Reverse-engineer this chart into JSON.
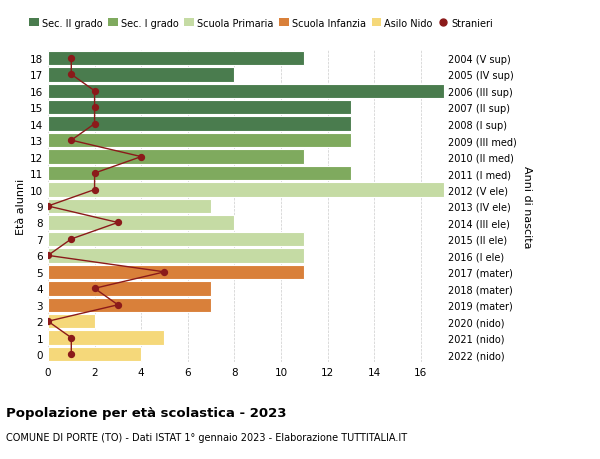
{
  "ages": [
    18,
    17,
    16,
    15,
    14,
    13,
    12,
    11,
    10,
    9,
    8,
    7,
    6,
    5,
    4,
    3,
    2,
    1,
    0
  ],
  "right_labels": [
    "2004 (V sup)",
    "2005 (IV sup)",
    "2006 (III sup)",
    "2007 (II sup)",
    "2008 (I sup)",
    "2009 (III med)",
    "2010 (II med)",
    "2011 (I med)",
    "2012 (V ele)",
    "2013 (IV ele)",
    "2014 (III ele)",
    "2015 (II ele)",
    "2016 (I ele)",
    "2017 (mater)",
    "2018 (mater)",
    "2019 (mater)",
    "2020 (nido)",
    "2021 (nido)",
    "2022 (nido)"
  ],
  "bar_values": [
    11,
    8,
    17,
    13,
    13,
    13,
    11,
    13,
    17,
    7,
    8,
    11,
    11,
    11,
    7,
    7,
    2,
    5,
    4
  ],
  "bar_colors": [
    "#4a7c4e",
    "#4a7c4e",
    "#4a7c4e",
    "#4a7c4e",
    "#4a7c4e",
    "#7faa5e",
    "#7faa5e",
    "#7faa5e",
    "#c5dba4",
    "#c5dba4",
    "#c5dba4",
    "#c5dba4",
    "#c5dba4",
    "#d9803a",
    "#d9803a",
    "#d9803a",
    "#f5d87a",
    "#f5d87a",
    "#f5d87a"
  ],
  "stranieri_x": [
    1,
    1,
    2,
    2,
    2,
    1,
    4,
    2,
    2,
    0,
    3,
    1,
    0,
    5,
    2,
    3,
    0,
    1,
    1
  ],
  "legend_labels": [
    "Sec. II grado",
    "Sec. I grado",
    "Scuola Primaria",
    "Scuola Infanzia",
    "Asilo Nido",
    "Stranieri"
  ],
  "legend_colors": [
    "#4a7c4e",
    "#7faa5e",
    "#c5dba4",
    "#d9803a",
    "#f5d87a",
    "#8b1a1a"
  ],
  "title_bold": "Popolazione per età scolastica - 2023",
  "subtitle": "COMUNE DI PORTE (TO) - Dati ISTAT 1° gennaio 2023 - Elaborazione TUTTITALIA.IT",
  "ylabel_left": "Età alunni",
  "ylabel_right": "Anni di nascita",
  "xlim": [
    0,
    17
  ],
  "xticks": [
    0,
    2,
    4,
    6,
    8,
    10,
    12,
    14,
    16
  ],
  "bg_color": "#ffffff",
  "bar_edge_color": "#ffffff",
  "stranieri_color": "#8b1a1a",
  "grid_color": "#cccccc"
}
